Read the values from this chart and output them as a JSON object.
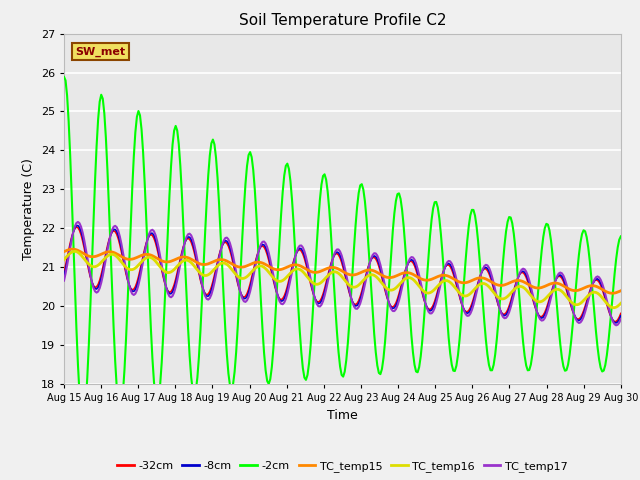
{
  "title": "Soil Temperature Profile C2",
  "xlabel": "Time",
  "ylabel": "Temperature (C)",
  "ylim": [
    18.0,
    27.0
  ],
  "xlim": [
    0,
    15
  ],
  "yticks": [
    18.0,
    19.0,
    20.0,
    21.0,
    22.0,
    23.0,
    24.0,
    25.0,
    26.0,
    27.0
  ],
  "xtick_labels": [
    "Aug 15",
    "Aug 16",
    "Aug 17",
    "Aug 18",
    "Aug 19",
    "Aug 20",
    "Aug 21",
    "Aug 22",
    "Aug 23",
    "Aug 24",
    "Aug 25",
    "Aug 26",
    "Aug 27",
    "Aug 28",
    "Aug 29",
    "Aug 30"
  ],
  "legend_labels": [
    "-32cm",
    "-8cm",
    "-2cm",
    "TC_temp15",
    "TC_temp16",
    "TC_temp17"
  ],
  "legend_colors": [
    "#ff0000",
    "#0000cc",
    "#00ff00",
    "#ff8800",
    "#dddd00",
    "#9933cc"
  ],
  "sw_met_label": "SW_met",
  "plot_bg": "#e8e8e8",
  "fig_bg": "#f0f0f0",
  "title_fontsize": 11
}
